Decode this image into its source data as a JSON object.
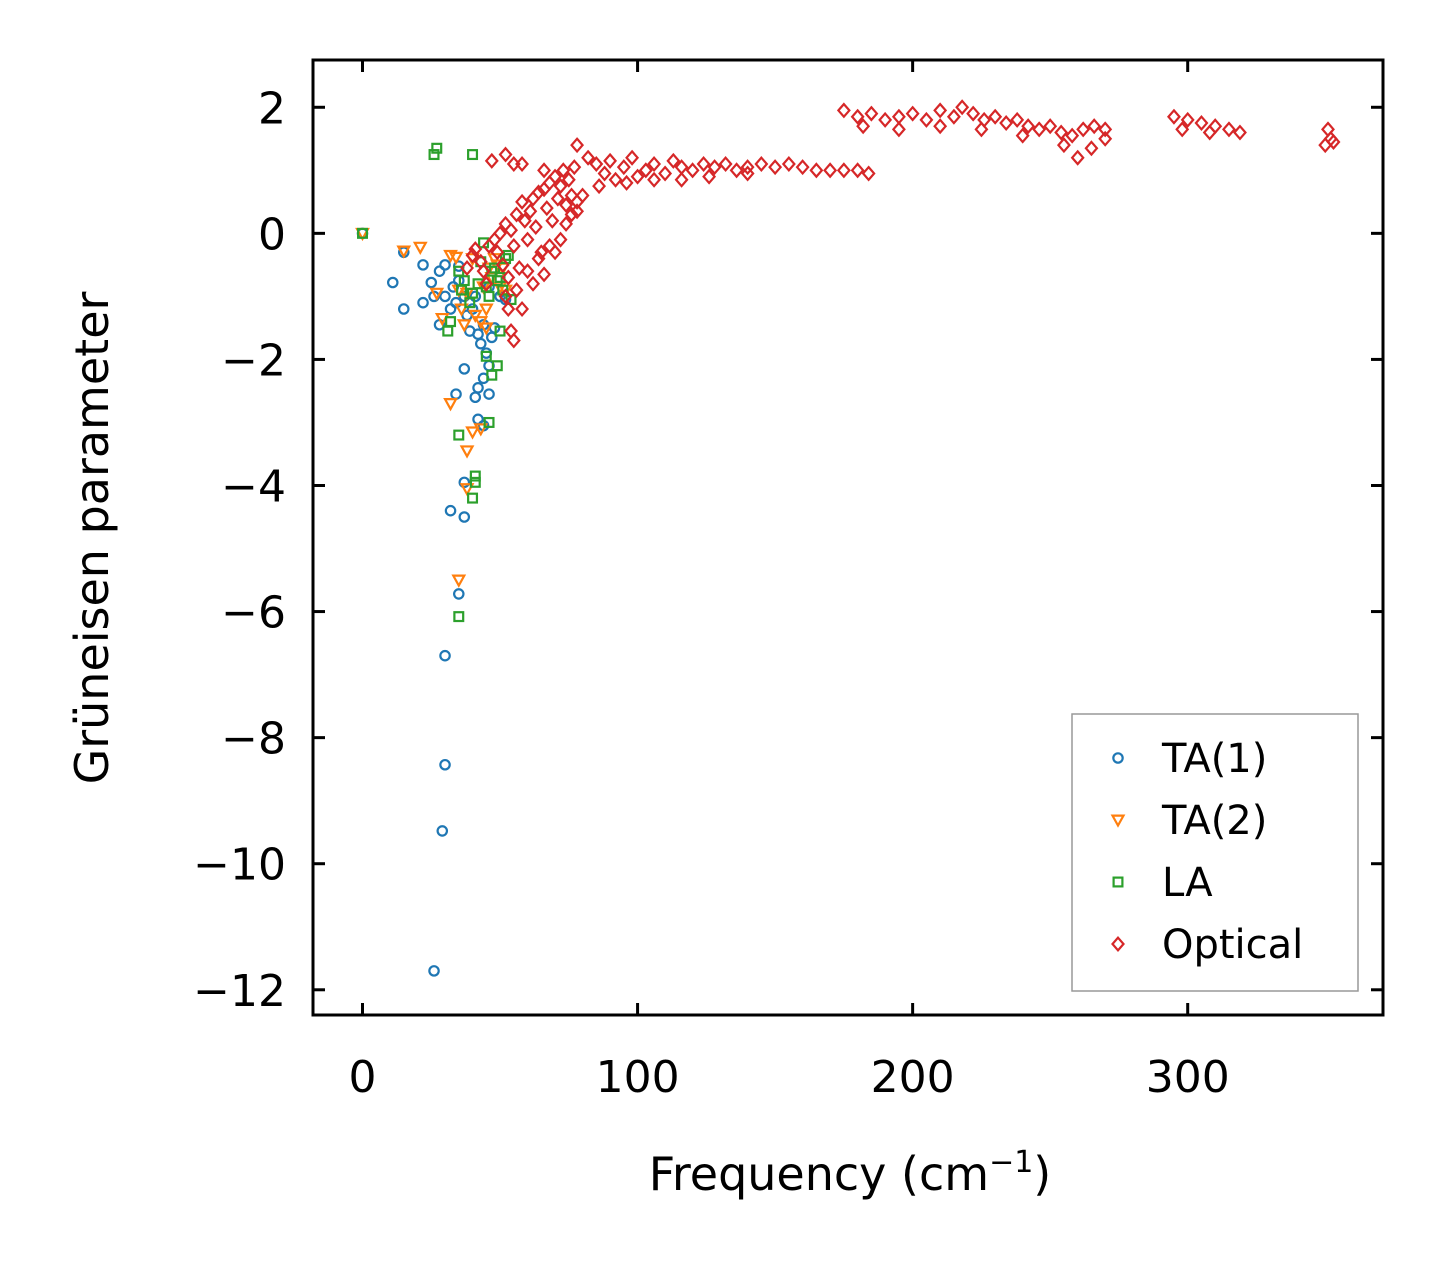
{
  "chart_data": {
    "type": "scatter",
    "title": "",
    "xlabel": "Frequency (cm",
    "xlabel_sup": "−1",
    "xlabel_end": ")",
    "ylabel": "Grüneisen parameter",
    "xlim": [
      -18,
      371
    ],
    "ylim": [
      -12.4,
      2.75
    ],
    "xticks": [
      0,
      100,
      200,
      300
    ],
    "xtick_labels": [
      "0",
      "100",
      "200",
      "300"
    ],
    "yticks": [
      2,
      0,
      -2,
      -4,
      -6,
      -8,
      -10,
      -12
    ],
    "ytick_labels": [
      "2",
      "0",
      "−2",
      "−4",
      "−6",
      "−8",
      "−10",
      "−12"
    ],
    "legend_position": "lower-right",
    "series": [
      {
        "name": "TA(1)",
        "marker": "circle",
        "color": "#1f77b4",
        "points": [
          [
            0,
            0
          ],
          [
            11,
            -0.78
          ],
          [
            15,
            -0.3
          ],
          [
            15,
            -1.2
          ],
          [
            22,
            -0.5
          ],
          [
            22,
            -1.1
          ],
          [
            25,
            -0.78
          ],
          [
            26,
            -1.0
          ],
          [
            28,
            -0.6
          ],
          [
            28,
            -1.45
          ],
          [
            30,
            -0.5
          ],
          [
            30,
            -1.0
          ],
          [
            32,
            -1.2
          ],
          [
            33,
            -0.85
          ],
          [
            34,
            -1.1
          ],
          [
            35,
            -0.52
          ],
          [
            35,
            -0.75
          ],
          [
            37,
            -1.0
          ],
          [
            38,
            -1.3
          ],
          [
            39,
            -1.55
          ],
          [
            40,
            -1.2
          ],
          [
            41,
            -1.0
          ],
          [
            42,
            -1.6
          ],
          [
            43,
            -1.75
          ],
          [
            44,
            -1.45
          ],
          [
            45,
            -1.9
          ],
          [
            46,
            -2.1
          ],
          [
            47,
            -1.65
          ],
          [
            48,
            -1.5
          ],
          [
            42,
            -2.45
          ],
          [
            41,
            -2.6
          ],
          [
            44,
            -2.3
          ],
          [
            46,
            -2.55
          ],
          [
            42,
            -2.95
          ],
          [
            44,
            -3.05
          ],
          [
            34,
            -2.55
          ],
          [
            37,
            -2.15
          ],
          [
            37,
            -3.95
          ],
          [
            32,
            -4.4
          ],
          [
            37,
            -4.5
          ],
          [
            35,
            -5.72
          ],
          [
            30,
            -6.7
          ],
          [
            30,
            -8.43
          ],
          [
            29,
            -9.48
          ],
          [
            26,
            -11.7
          ],
          [
            50,
            -1.0
          ],
          [
            52,
            -1.05
          ],
          [
            46,
            -0.85
          ]
        ]
      },
      {
        "name": "TA(2)",
        "marker": "triangle-down",
        "color": "#ff7f0e",
        "points": [
          [
            0,
            0
          ],
          [
            15,
            -0.28
          ],
          [
            21,
            -0.22
          ],
          [
            27,
            -0.95
          ],
          [
            29,
            -1.35
          ],
          [
            32,
            -0.35
          ],
          [
            34,
            -0.38
          ],
          [
            35,
            -0.9
          ],
          [
            36,
            -1.2
          ],
          [
            37,
            -1.45
          ],
          [
            38,
            -0.95
          ],
          [
            40,
            -0.4
          ],
          [
            41,
            -1.3
          ],
          [
            43,
            -1.4
          ],
          [
            44,
            -0.85
          ],
          [
            45,
            -1.2
          ],
          [
            46,
            -0.55
          ],
          [
            47,
            -0.7
          ],
          [
            48,
            -0.4
          ],
          [
            49,
            -0.5
          ],
          [
            50,
            -0.85
          ],
          [
            51,
            -0.55
          ],
          [
            52,
            -0.9
          ],
          [
            32,
            -2.7
          ],
          [
            38,
            -3.45
          ],
          [
            40,
            -3.15
          ],
          [
            43,
            -3.1
          ],
          [
            38,
            -4.05
          ],
          [
            35,
            -5.5
          ],
          [
            45,
            -1.5
          ]
        ]
      },
      {
        "name": "LA",
        "marker": "square",
        "color": "#2ca02c",
        "points": [
          [
            0,
            0
          ],
          [
            26,
            1.25
          ],
          [
            27,
            1.35
          ],
          [
            40,
            1.25
          ],
          [
            31,
            -1.55
          ],
          [
            32,
            -1.4
          ],
          [
            35,
            -0.6
          ],
          [
            36,
            -0.9
          ],
          [
            37,
            -0.75
          ],
          [
            39,
            -1.1
          ],
          [
            40,
            -0.95
          ],
          [
            42,
            -0.8
          ],
          [
            43,
            -0.45
          ],
          [
            44,
            -0.15
          ],
          [
            45,
            -0.85
          ],
          [
            46,
            -1.0
          ],
          [
            47,
            -0.6
          ],
          [
            48,
            -0.55
          ],
          [
            49,
            -0.75
          ],
          [
            50,
            -0.7
          ],
          [
            51,
            -0.9
          ],
          [
            52,
            -0.4
          ],
          [
            53,
            -0.35
          ],
          [
            54,
            -1.05
          ],
          [
            45,
            -1.95
          ],
          [
            47,
            -2.25
          ],
          [
            50,
            -1.55
          ],
          [
            49,
            -2.1
          ],
          [
            35,
            -3.2
          ],
          [
            46,
            -3.0
          ],
          [
            41,
            -3.85
          ],
          [
            41,
            -3.95
          ],
          [
            40,
            -4.2
          ],
          [
            35,
            -6.08
          ]
        ]
      },
      {
        "name": "Optical",
        "marker": "diamond",
        "color": "#d62728",
        "points": [
          [
            38,
            -0.55
          ],
          [
            40,
            -0.35
          ],
          [
            41,
            -0.25
          ],
          [
            43,
            -0.45
          ],
          [
            44,
            -0.6
          ],
          [
            45,
            -0.8
          ],
          [
            46,
            -0.2
          ],
          [
            48,
            -0.1
          ],
          [
            49,
            -0.3
          ],
          [
            50,
            0.0
          ],
          [
            51,
            -0.5
          ],
          [
            52,
            0.15
          ],
          [
            53,
            -0.7
          ],
          [
            54,
            0.05
          ],
          [
            55,
            -0.2
          ],
          [
            56,
            0.3
          ],
          [
            57,
            -0.55
          ],
          [
            58,
            0.5
          ],
          [
            59,
            0.2
          ],
          [
            60,
            -0.1
          ],
          [
            61,
            0.35
          ],
          [
            62,
            0.55
          ],
          [
            63,
            0.1
          ],
          [
            64,
            0.65
          ],
          [
            65,
            -0.3
          ],
          [
            66,
            0.7
          ],
          [
            67,
            0.4
          ],
          [
            68,
            0.8
          ],
          [
            69,
            0.2
          ],
          [
            70,
            0.9
          ],
          [
            71,
            0.55
          ],
          [
            72,
            0.75
          ],
          [
            73,
            1.0
          ],
          [
            74,
            0.45
          ],
          [
            75,
            0.85
          ],
          [
            76,
            0.6
          ],
          [
            77,
            1.05
          ],
          [
            78,
            0.35
          ],
          [
            52,
            -1.0
          ],
          [
            53,
            -1.2
          ],
          [
            54,
            -1.55
          ],
          [
            55,
            -1.7
          ],
          [
            56,
            -0.9
          ],
          [
            58,
            -1.2
          ],
          [
            60,
            -0.6
          ],
          [
            62,
            -0.8
          ],
          [
            64,
            -0.4
          ],
          [
            66,
            -0.65
          ],
          [
            68,
            -0.2
          ],
          [
            70,
            -0.3
          ],
          [
            72,
            -0.1
          ],
          [
            74,
            0.15
          ],
          [
            76,
            0.3
          ],
          [
            78,
            0.5
          ],
          [
            80,
            0.6
          ],
          [
            55,
            1.1
          ],
          [
            52,
            1.25
          ],
          [
            47,
            1.15
          ],
          [
            66,
            1.0
          ],
          [
            58,
            1.1
          ],
          [
            78,
            1.4
          ],
          [
            82,
            1.2
          ],
          [
            85,
            1.1
          ],
          [
            88,
            0.95
          ],
          [
            90,
            1.15
          ],
          [
            92,
            0.85
          ],
          [
            95,
            1.05
          ],
          [
            98,
            1.2
          ],
          [
            100,
            0.9
          ],
          [
            103,
            1.0
          ],
          [
            106,
            1.1
          ],
          [
            110,
            0.95
          ],
          [
            113,
            1.15
          ],
          [
            116,
            1.05
          ],
          [
            120,
            1.0
          ],
          [
            124,
            1.1
          ],
          [
            128,
            1.05
          ],
          [
            132,
            1.1
          ],
          [
            136,
            1.0
          ],
          [
            140,
            1.05
          ],
          [
            145,
            1.1
          ],
          [
            150,
            1.05
          ],
          [
            155,
            1.1
          ],
          [
            160,
            1.05
          ],
          [
            165,
            1.0
          ],
          [
            170,
            1.0
          ],
          [
            175,
            1.0
          ],
          [
            180,
            1.0
          ],
          [
            184,
            0.95
          ],
          [
            86,
            0.75
          ],
          [
            96,
            0.8
          ],
          [
            106,
            0.85
          ],
          [
            116,
            0.85
          ],
          [
            126,
            0.9
          ],
          [
            140,
            0.95
          ],
          [
            175,
            1.95
          ],
          [
            180,
            1.85
          ],
          [
            185,
            1.9
          ],
          [
            190,
            1.8
          ],
          [
            195,
            1.85
          ],
          [
            200,
            1.9
          ],
          [
            205,
            1.8
          ],
          [
            210,
            1.95
          ],
          [
            215,
            1.85
          ],
          [
            218,
            2.0
          ],
          [
            222,
            1.9
          ],
          [
            226,
            1.8
          ],
          [
            230,
            1.85
          ],
          [
            234,
            1.75
          ],
          [
            238,
            1.8
          ],
          [
            242,
            1.7
          ],
          [
            246,
            1.65
          ],
          [
            250,
            1.7
          ],
          [
            254,
            1.6
          ],
          [
            258,
            1.55
          ],
          [
            262,
            1.65
          ],
          [
            266,
            1.7
          ],
          [
            270,
            1.65
          ],
          [
            182,
            1.7
          ],
          [
            195,
            1.65
          ],
          [
            210,
            1.7
          ],
          [
            225,
            1.65
          ],
          [
            240,
            1.55
          ],
          [
            255,
            1.4
          ],
          [
            260,
            1.2
          ],
          [
            265,
            1.35
          ],
          [
            270,
            1.5
          ],
          [
            295,
            1.85
          ],
          [
            300,
            1.8
          ],
          [
            305,
            1.75
          ],
          [
            310,
            1.7
          ],
          [
            315,
            1.65
          ],
          [
            319,
            1.6
          ],
          [
            298,
            1.65
          ],
          [
            308,
            1.6
          ],
          [
            351,
            1.65
          ],
          [
            352,
            1.5
          ],
          [
            353,
            1.45
          ],
          [
            350,
            1.4
          ]
        ]
      }
    ]
  }
}
